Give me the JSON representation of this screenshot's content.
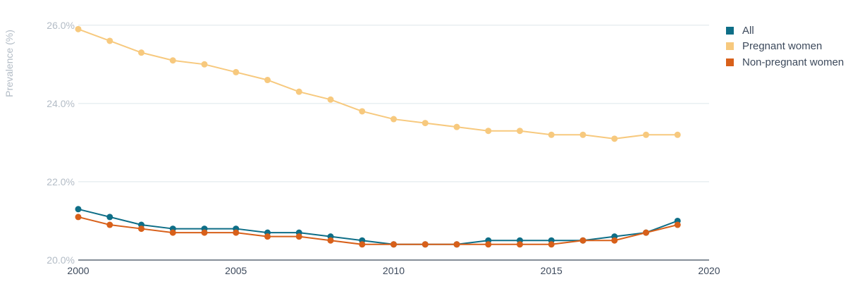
{
  "chart_data": {
    "type": "line",
    "ylabel": "Prevalence (%)",
    "xlabel": "",
    "title": "",
    "xlim": [
      2000,
      2020
    ],
    "ylim": [
      20.0,
      26.5
    ],
    "x_ticks": [
      2000,
      2005,
      2010,
      2015,
      2020
    ],
    "y_ticks": [
      20.0,
      22.0,
      24.0,
      26.0
    ],
    "x_tick_labels": [
      "2000",
      "2005",
      "2010",
      "2015",
      "2020"
    ],
    "y_tick_labels": [
      "20.0%",
      "22.0%",
      "24.0%",
      "26.0%"
    ],
    "grid": "horizontal",
    "legend_position": "top-right",
    "x": [
      2000,
      2001,
      2002,
      2003,
      2004,
      2005,
      2006,
      2007,
      2008,
      2009,
      2010,
      2011,
      2012,
      2013,
      2014,
      2015,
      2016,
      2017,
      2018,
      2019
    ],
    "series": [
      {
        "name": "All",
        "color": "#0e6e87",
        "values": [
          21.3,
          21.1,
          20.9,
          20.8,
          20.8,
          20.8,
          20.7,
          20.7,
          20.6,
          20.5,
          20.4,
          20.4,
          20.4,
          20.5,
          20.5,
          20.5,
          20.5,
          20.6,
          20.7,
          21.0
        ]
      },
      {
        "name": "Pregnant women",
        "color": "#f7c97e",
        "values": [
          25.9,
          25.6,
          25.3,
          25.1,
          25.0,
          24.8,
          24.6,
          24.3,
          24.1,
          23.8,
          23.6,
          23.5,
          23.4,
          23.3,
          23.3,
          23.2,
          23.2,
          23.1,
          23.2,
          23.2
        ]
      },
      {
        "name": "Non-pregnant women",
        "color": "#d8601a",
        "values": [
          21.1,
          20.9,
          20.8,
          20.7,
          20.7,
          20.7,
          20.6,
          20.6,
          20.5,
          20.4,
          20.4,
          20.4,
          20.4,
          20.4,
          20.4,
          20.4,
          20.5,
          20.5,
          20.7,
          20.9
        ]
      }
    ]
  }
}
